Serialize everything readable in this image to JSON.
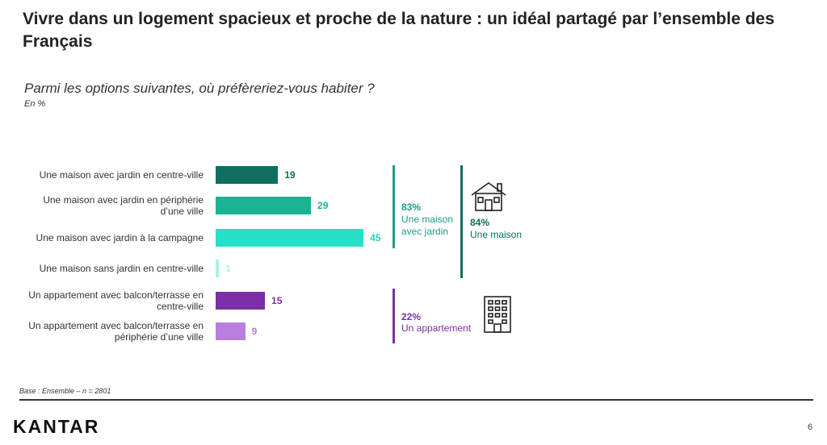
{
  "header": {
    "title": "Vivre dans un logement spacieux et proche de la nature : un idéal partagé par l’ensemble des Français",
    "question": "Parmi les options suivantes, où préfèreriez-vous habiter ?",
    "unit": "En %"
  },
  "chart_data": {
    "type": "bar",
    "orientation": "horizontal",
    "categories": [
      "Une maison avec jardin en centre-ville",
      "Une maison avec jardin en périphérie d’une ville",
      "Une maison avec jardin à la campagne",
      "Une maison sans jardin en centre-ville",
      "Un appartement avec balcon/terrasse en centre-ville",
      "Un appartement avec balcon/terrasse en périphérie d’une ville"
    ],
    "category_lines": [
      [
        "Une maison avec jardin en centre-ville"
      ],
      [
        "Une maison avec jardin en périphérie",
        "d’une ville"
      ],
      [
        "Une maison avec jardin à la campagne"
      ],
      [
        "Une maison sans jardin en centre-ville"
      ],
      [
        "Un appartement avec balcon/terrasse en",
        "centre-ville"
      ],
      [
        "Un appartement avec balcon/terrasse en",
        "périphérie d’une ville"
      ]
    ],
    "values": [
      19,
      29,
      45,
      1,
      15,
      9
    ],
    "value_labels": [
      "19",
      "29",
      "45",
      "1",
      "15",
      "9"
    ],
    "colors": [
      "#0f6e5e",
      "#1ab394",
      "#26e0c8",
      "#a8f2e8",
      "#7b2fa8",
      "#b87fe0"
    ],
    "label_colors": [
      "#0f6e5e",
      "#1ab394",
      "#26d0b8",
      "#a8f2e8",
      "#7b2fa8",
      "#b87fe0"
    ],
    "groups": [
      {
        "pct": "83%",
        "label": "Une maison avec jardin",
        "color": "#1a9e84"
      },
      {
        "pct": "84%",
        "label": "Une maison",
        "color": "#0f6e5e"
      },
      {
        "pct": "22%",
        "label": "Un appartement",
        "color": "#7b2fa8"
      }
    ]
  },
  "footer": {
    "base": "Base : Ensemble – n = 2801",
    "logo": "KANTAR",
    "page": "6"
  }
}
